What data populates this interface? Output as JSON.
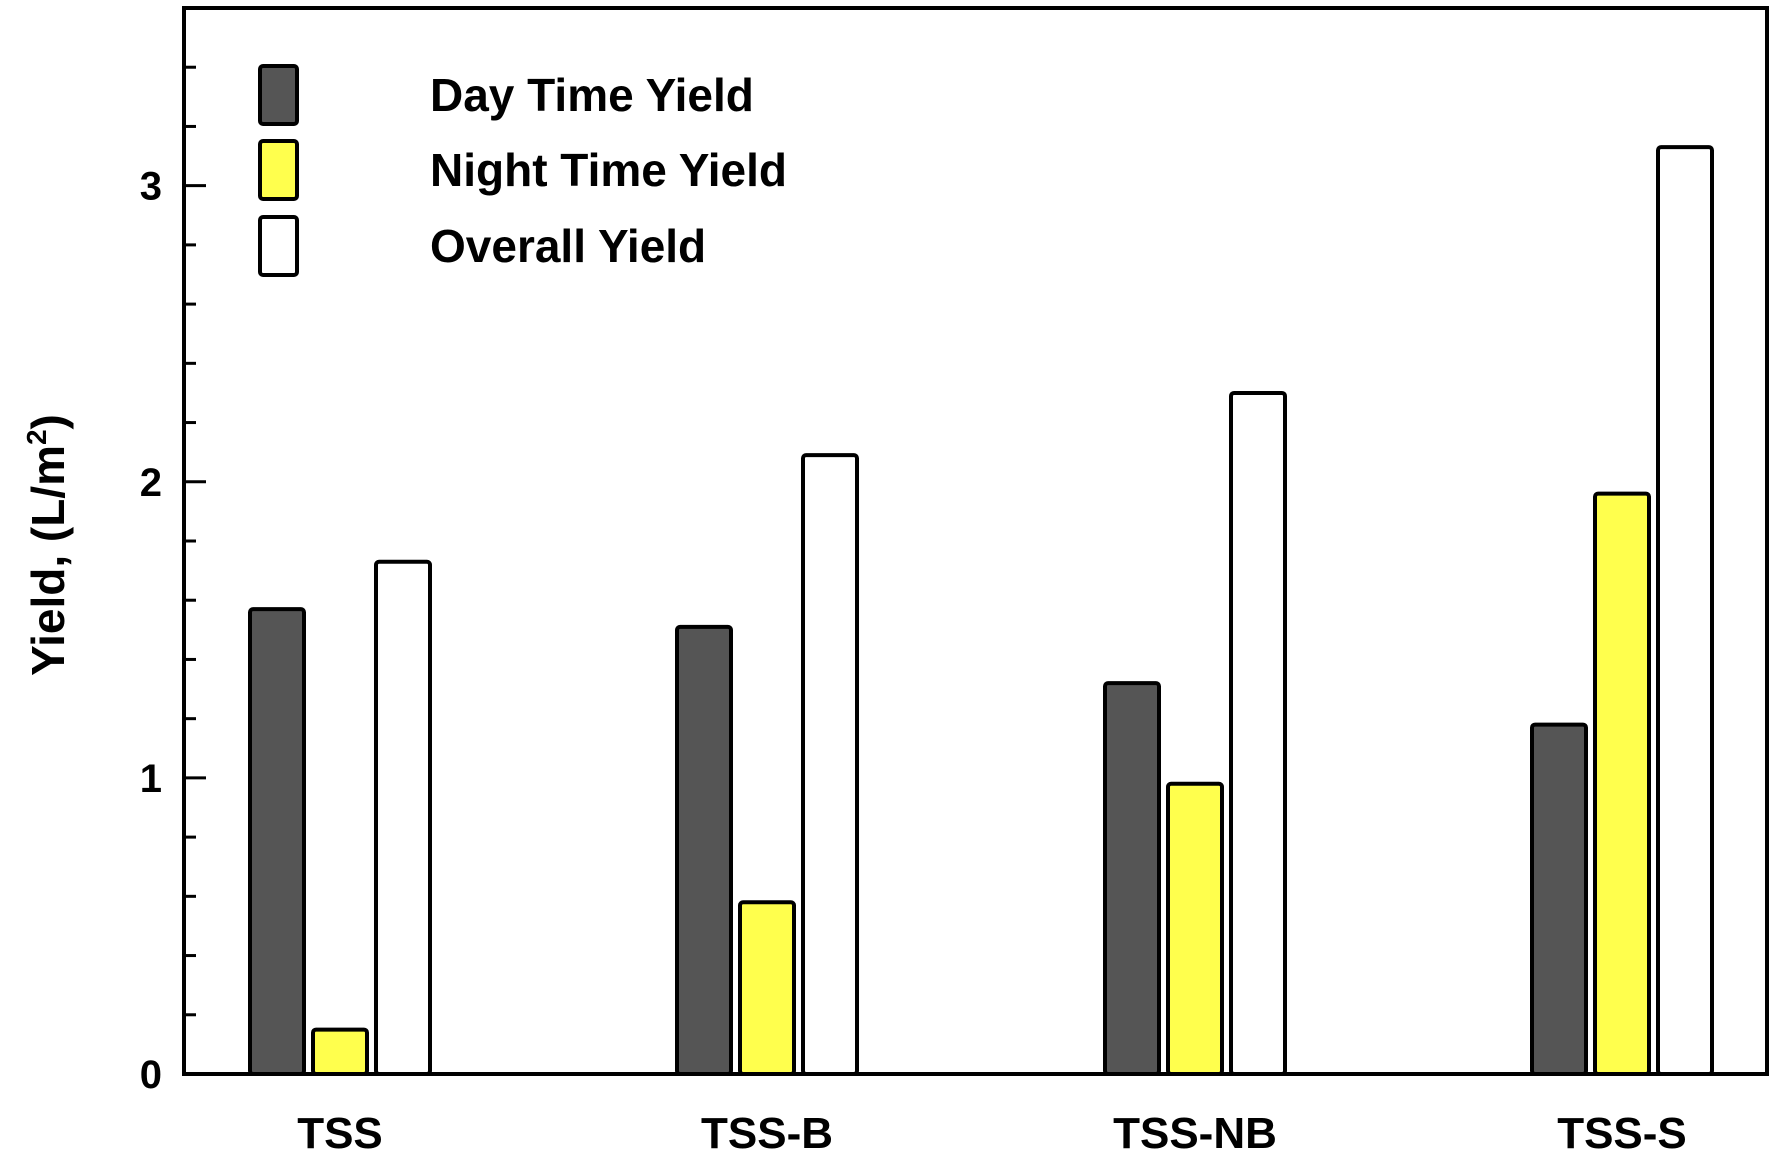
{
  "chart_data": {
    "type": "bar",
    "categories": [
      "TSS",
      "TSS-B",
      "TSS-NB",
      "TSS-S"
    ],
    "series": [
      {
        "name": "Day Time Yield",
        "values": [
          1.57,
          1.51,
          1.32,
          1.18
        ],
        "color": "#555555"
      },
      {
        "name": "Night Time Yield",
        "values": [
          0.15,
          0.58,
          0.98,
          1.96
        ],
        "color": "#ffff4d"
      },
      {
        "name": "Overall Yield",
        "values": [
          1.73,
          2.09,
          2.3,
          3.13
        ],
        "color": "#ffffff"
      }
    ],
    "title": "",
    "xlabel": "",
    "ylabel": "Yield, (L/m",
    "ylabel_superscript": "2",
    "ylabel_suffix": ")",
    "ylim": [
      0,
      3.6
    ],
    "yticks_major": [
      0,
      1,
      2,
      3
    ],
    "ytick_labels": [
      "0",
      "1",
      "2",
      "3"
    ],
    "yticks_minor_step": 0.2,
    "grid": false,
    "legend_position": "top-left"
  }
}
